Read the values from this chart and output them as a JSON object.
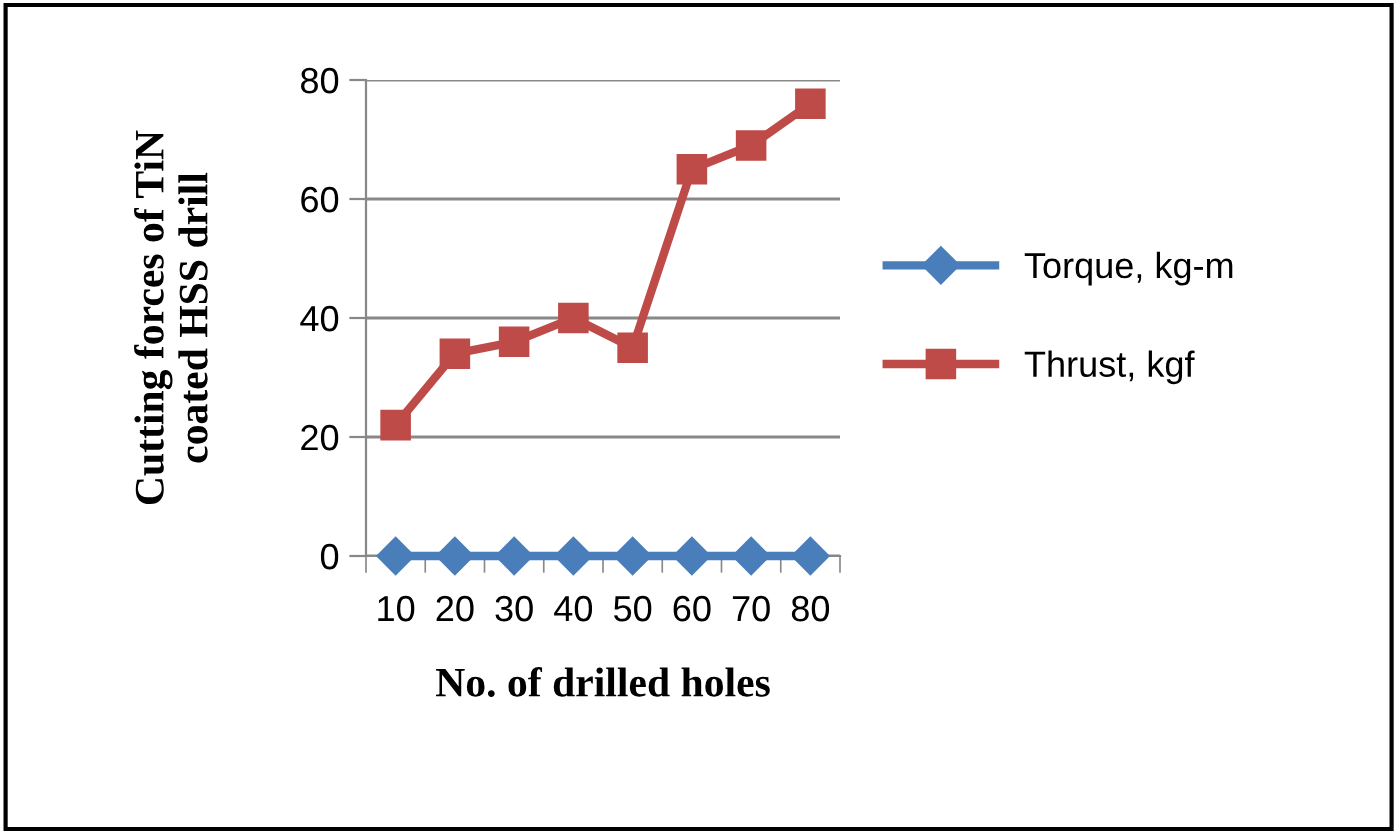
{
  "chart_data": {
    "type": "line",
    "xlabel": "No. of drilled holes",
    "ylabel": "Cutting forces of TiN\ncoated HSS drill",
    "categories": [
      "10",
      "20",
      "30",
      "40",
      "50",
      "60",
      "70",
      "80"
    ],
    "series": [
      {
        "name": "Torque, kg-m",
        "color": "#4a7ebb",
        "marker": "diamond",
        "values": [
          0,
          0,
          0,
          0,
          0,
          0,
          0,
          0
        ]
      },
      {
        "name": "Thrust, kgf",
        "color": "#be4b48",
        "marker": "square",
        "values": [
          22,
          34,
          36,
          40,
          35,
          65,
          69,
          76
        ]
      }
    ],
    "ylim": [
      0,
      80
    ],
    "yticks": [
      0,
      20,
      40,
      60,
      80
    ],
    "grid": "y",
    "legend": "right",
    "line_style": "solid"
  }
}
